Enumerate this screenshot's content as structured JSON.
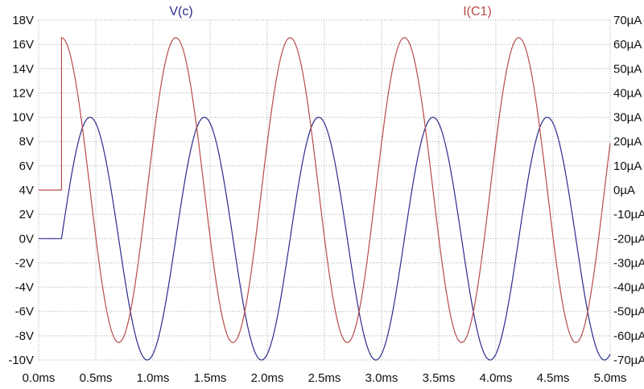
{
  "chart_data": {
    "type": "line",
    "title": "",
    "xlabel": "",
    "grid": true,
    "legend": [
      "V(c)",
      "I(C1)"
    ],
    "x_axis": {
      "range": [
        0,
        5
      ],
      "unit": "ms",
      "tick_labels": [
        "0.0ms",
        "0.5ms",
        "1.0ms",
        "1.5ms",
        "2.0ms",
        "2.5ms",
        "3.0ms",
        "3.5ms",
        "4.0ms",
        "4.5ms",
        "5.0ms"
      ]
    },
    "y_left": {
      "range": [
        -10,
        18
      ],
      "unit": "V",
      "tick_labels": [
        "18V",
        "16V",
        "14V",
        "12V",
        "10V",
        "8V",
        "6V",
        "4V",
        "2V",
        "0V",
        "-2V",
        "-4V",
        "-6V",
        "-8V",
        "-10V"
      ]
    },
    "y_right": {
      "range": [
        -70,
        70
      ],
      "unit": "µA",
      "tick_labels": [
        "70µA",
        "60µA",
        "50µA",
        "40µA",
        "30µA",
        "20µA",
        "10µA",
        "0µA",
        "-10µA",
        "-20µA",
        "-30µA",
        "-40µA",
        "-50µA",
        "-60µA",
        "-70µA"
      ]
    },
    "series": [
      {
        "name": "V(c)",
        "axis": "left",
        "color": "#2b2b8c",
        "initial_value": 0,
        "start_ms": 0.2,
        "amplitude": 10,
        "period_ms": 1.0,
        "peaks": [
          [
            0.45,
            10
          ],
          [
            1.45,
            10
          ],
          [
            2.45,
            10
          ],
          [
            3.45,
            10
          ],
          [
            4.45,
            10
          ]
        ],
        "troughs": [
          [
            0.95,
            -10
          ],
          [
            1.95,
            -10
          ],
          [
            2.95,
            -10
          ],
          [
            3.95,
            -10
          ],
          [
            4.95,
            -10
          ]
        ]
      },
      {
        "name": "I(C1)",
        "axis": "right",
        "color": "#b84a4a",
        "initial_value": 0,
        "start_ms": 0.2,
        "amplitude": 62.8,
        "period_ms": 1.0,
        "peaks": [
          [
            0.2,
            62.8
          ],
          [
            1.2,
            62.8
          ],
          [
            2.2,
            62.8
          ],
          [
            3.2,
            62.8
          ],
          [
            4.2,
            62.8
          ]
        ],
        "troughs": [
          [
            0.7,
            -62.8
          ],
          [
            1.7,
            -62.8
          ],
          [
            2.7,
            -62.8
          ],
          [
            3.7,
            -62.8
          ],
          [
            4.7,
            -62.8
          ]
        ]
      }
    ]
  }
}
